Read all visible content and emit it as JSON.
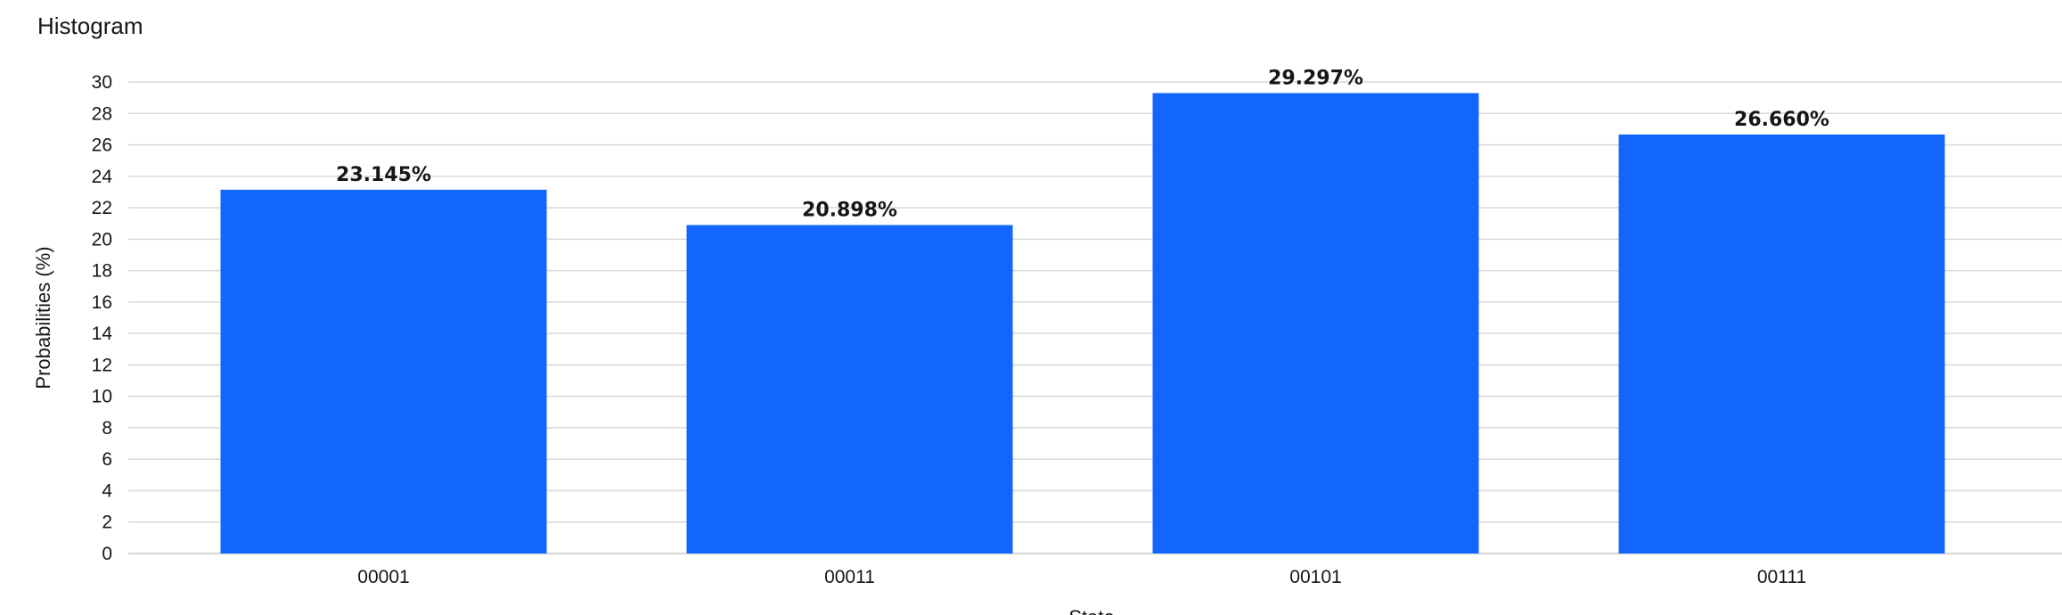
{
  "chart_data": {
    "type": "bar",
    "title": "Histogram",
    "xlabel": "State",
    "ylabel": "Probabilities (%)",
    "categories": [
      "00001",
      "00011",
      "00101",
      "00111"
    ],
    "values": [
      23.145,
      20.898,
      29.297,
      26.66
    ],
    "data_labels": [
      "23.145%",
      "20.898%",
      "29.297%",
      "26.660%"
    ],
    "yticks": [
      "0",
      "2",
      "4",
      "6",
      "8",
      "10",
      "12",
      "14",
      "16",
      "18",
      "20",
      "22",
      "24",
      "26",
      "28",
      "30"
    ],
    "ylim": [
      0,
      30
    ],
    "grid": true,
    "legend": "none",
    "bar_color": "#1266fe"
  }
}
